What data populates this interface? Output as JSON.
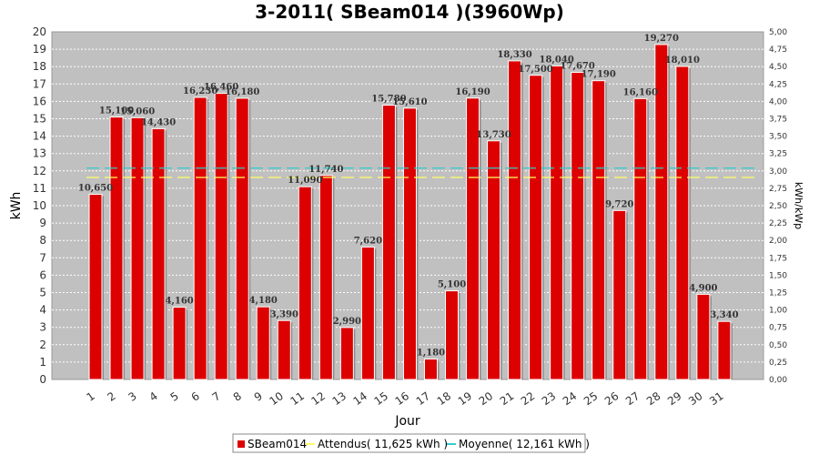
{
  "chart_data": {
    "type": "bar",
    "title": "3-2011( SBeam014 )(3960Wp)",
    "xlabel": "Jour",
    "ylabel": "kWh",
    "ylabel_right": "kWh/kWp",
    "ylim": [
      0,
      20
    ],
    "ylim_right": [
      0,
      5
    ],
    "y_ticks": [
      "0",
      "1",
      "2",
      "3",
      "4",
      "5",
      "6",
      "7",
      "8",
      "9",
      "10",
      "11",
      "12",
      "13",
      "14",
      "15",
      "16",
      "17",
      "18",
      "19",
      "20"
    ],
    "y_right_ticks": [
      "0,00",
      "0,25",
      "0,50",
      "0,75",
      "1,00",
      "1,25",
      "1,50",
      "1,75",
      "2,00",
      "2,25",
      "2,50",
      "2,75",
      "3,00",
      "3,25",
      "3,50",
      "3,75",
      "4,00",
      "4,25",
      "4,50",
      "4,75",
      "5,00"
    ],
    "grid": true,
    "legend_position": "bottom",
    "categories": [
      "1",
      "2",
      "3",
      "4",
      "5",
      "6",
      "7",
      "8",
      "9",
      "10",
      "11",
      "12",
      "13",
      "14",
      "15",
      "16",
      "17",
      "18",
      "19",
      "20",
      "21",
      "22",
      "23",
      "24",
      "25",
      "26",
      "27",
      "28",
      "29",
      "30",
      "31"
    ],
    "series": [
      {
        "name": "SBeam014",
        "values": [
          10.65,
          15.1,
          15.06,
          14.43,
          4.16,
          16.23,
          16.46,
          16.18,
          4.18,
          3.39,
          11.09,
          11.74,
          2.99,
          7.62,
          15.78,
          15.61,
          1.18,
          5.1,
          16.19,
          13.73,
          18.33,
          17.5,
          18.04,
          17.67,
          17.19,
          9.72,
          16.16,
          19.27,
          18.01,
          4.9,
          3.34
        ],
        "labels": [
          "10,650",
          "15,100",
          "15,060",
          "14,430",
          "4,160",
          "16,230",
          "16,460",
          "16,180",
          "4,180",
          "3,390",
          "11,090",
          "11,740",
          "2,990",
          "7,620",
          "15,780",
          "15,610",
          "1,180",
          "5,100",
          "16,190",
          "13,730",
          "18,330",
          "17,500",
          "18,040",
          "17,670",
          "17,190",
          "9,720",
          "16,160",
          "19,270",
          "18,010",
          "4,900",
          "3,340"
        ],
        "color": "#dd0000"
      }
    ],
    "reference_lines": [
      {
        "name": "Attendus( 11,625 kWh )",
        "value": 11.625,
        "color": "#ffff66"
      },
      {
        "name": "Moyenne( 12,161 kWh )",
        "value": 12.161,
        "color": "#33cccc"
      }
    ]
  }
}
